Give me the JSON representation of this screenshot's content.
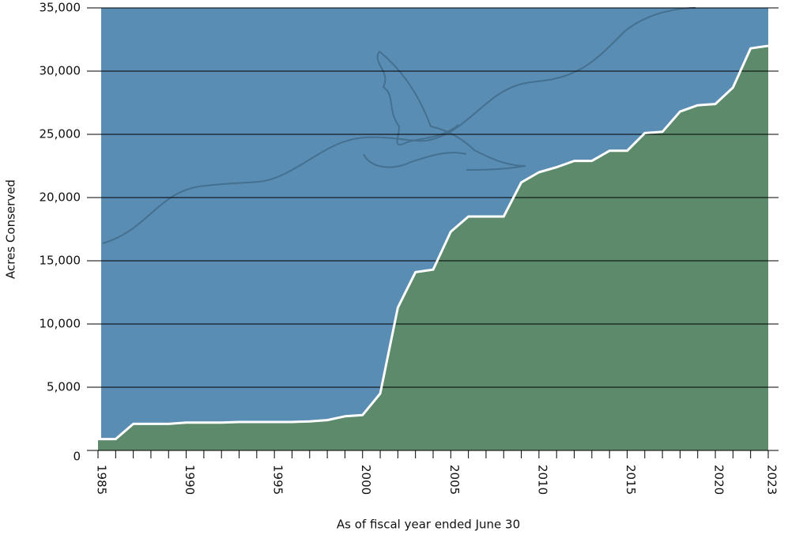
{
  "chart_data": {
    "type": "area",
    "y_label": "Acres Conserved",
    "x_label": "As of fiscal year ended June 30",
    "categories": [
      "1985",
      null,
      null,
      null,
      null,
      "1990",
      null,
      null,
      null,
      null,
      "1995",
      null,
      null,
      null,
      null,
      "2000",
      null,
      null,
      null,
      null,
      "2005",
      null,
      null,
      null,
      null,
      "2010",
      null,
      null,
      null,
      null,
      "2015",
      null,
      null,
      null,
      null,
      "2020",
      null,
      null,
      "2023"
    ],
    "series": [
      {
        "name": "Acres Conserved",
        "color": "#5e8a6c",
        "line_color": "#ffffff",
        "values": [
          900,
          900,
          2100,
          2100,
          2100,
          2200,
          2200,
          2200,
          2250,
          2250,
          2250,
          2250,
          2300,
          2400,
          2700,
          2800,
          4500,
          11300,
          14100,
          14300,
          17300,
          18500,
          18500,
          18500,
          21200,
          22000,
          22400,
          22900,
          22900,
          23700,
          23700,
          25100,
          25200,
          26800,
          27300,
          27400,
          28700,
          31800,
          32000
        ]
      }
    ],
    "background_color": "#5a8db4",
    "ylim": [
      0,
      35000
    ],
    "yticks": [
      0,
      {
        "value": 5000,
        "label": "5,000"
      },
      {
        "value": 10000,
        "label": "10,000"
      },
      {
        "value": 15000,
        "label": "15,000"
      },
      {
        "value": 20000,
        "label": "20,000"
      },
      {
        "value": 25000,
        "label": "25,000"
      },
      {
        "value": 30000,
        "label": "30,000"
      },
      {
        "value": 35000,
        "label": "35,000"
      }
    ],
    "grid": true
  }
}
